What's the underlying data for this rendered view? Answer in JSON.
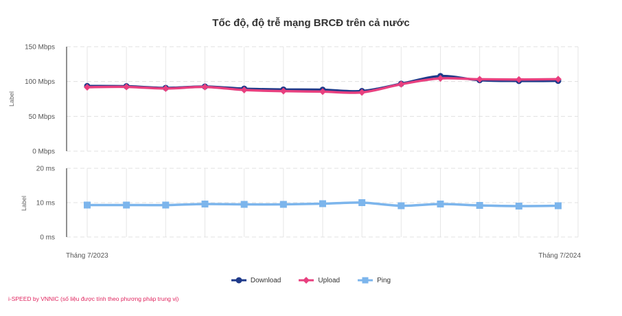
{
  "chart_data": {
    "type": "line",
    "title": "Tốc độ, độ trễ mạng BRCĐ trên cả nước",
    "xlabel_first": "Tháng 7/2023",
    "xlabel_last": "Tháng 7/2024",
    "x_count": 13,
    "panels": [
      {
        "ylabel": "Label",
        "ylim": [
          0,
          150
        ],
        "ticks": [
          {
            "value": 150,
            "label": "150 Mbps"
          },
          {
            "value": 100,
            "label": "100 Mbps"
          },
          {
            "value": 50,
            "label": "50 Mbps"
          },
          {
            "value": 0,
            "label": "0 Mbps"
          }
        ],
        "series": [
          {
            "name": "Download",
            "color": "#1f3a8a",
            "marker": "circle",
            "values": [
              93.5,
              93.2,
              90.8,
              92.8,
              89.7,
              88.5,
              88.2,
              86.3,
              96.8,
              107.8,
              101.9,
              100.8,
              101.0
            ]
          },
          {
            "name": "Upload",
            "color": "#e8407f",
            "marker": "diamond",
            "values": [
              91.8,
              92.3,
              89.9,
              92.2,
              87.8,
              86.2,
              85.5,
              84.4,
              96.1,
              104.5,
              103.2,
              102.9,
              103.4
            ]
          }
        ]
      },
      {
        "ylabel": "Label",
        "ylim": [
          0,
          20
        ],
        "ticks": [
          {
            "value": 20,
            "label": "20 ms"
          },
          {
            "value": 10,
            "label": "10 ms"
          },
          {
            "value": 0,
            "label": "0 ms"
          }
        ],
        "series": [
          {
            "name": "Ping",
            "color": "#7cb5ec",
            "marker": "square",
            "values": [
              9.3,
              9.3,
              9.3,
              9.6,
              9.5,
              9.5,
              9.7,
              10.0,
              9.1,
              9.6,
              9.2,
              9.0,
              9.1
            ]
          }
        ]
      }
    ],
    "legend": [
      {
        "name": "Download",
        "color": "#1f3a8a",
        "marker": "circle"
      },
      {
        "name": "Upload",
        "color": "#e8407f",
        "marker": "diamond"
      },
      {
        "name": "Ping",
        "color": "#7cb5ec",
        "marker": "square"
      }
    ]
  },
  "footer_note": "i-SPEED by VNNIC (số liệu được tính theo phương pháp trung vị)"
}
